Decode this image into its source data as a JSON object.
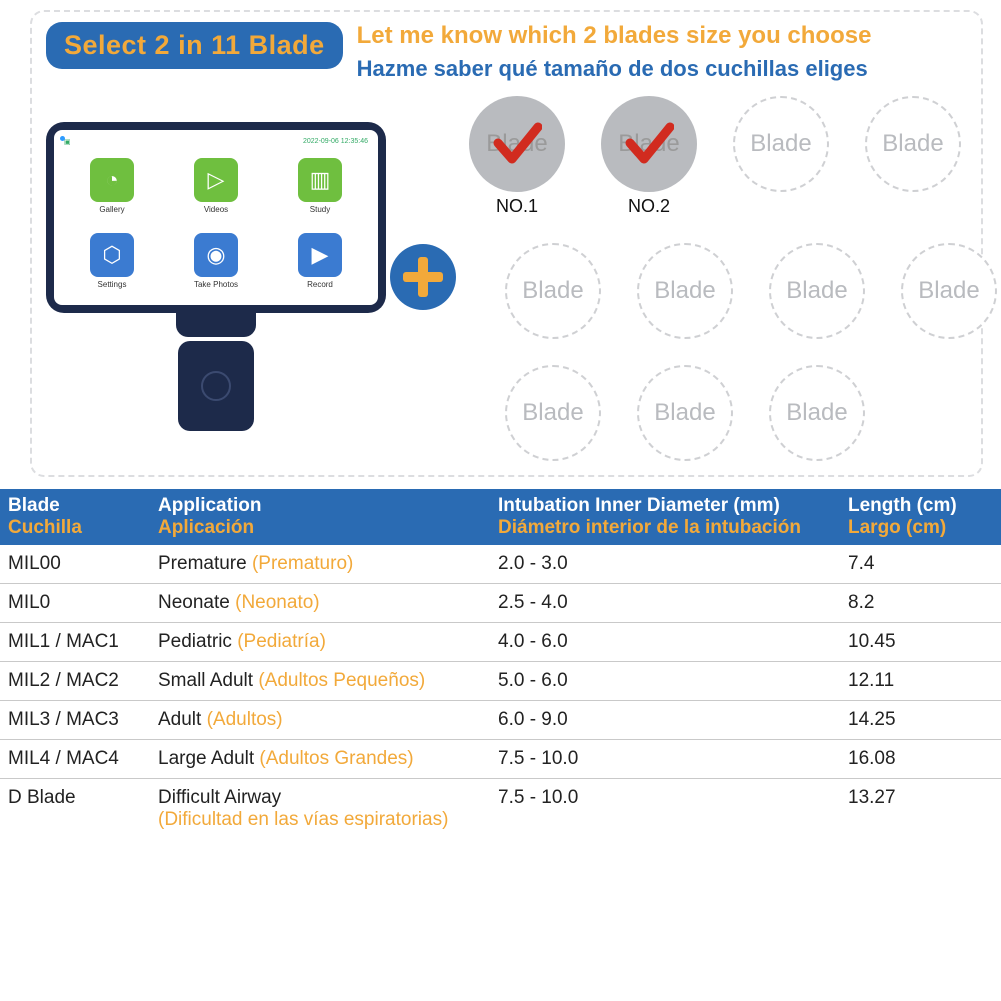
{
  "header": {
    "badge": "Select 2 in 11 Blade",
    "title_en": "Let me know which 2 blades size you choose",
    "title_es": "Hazme saber qué tamaño de dos cuchillas eliges"
  },
  "device": {
    "status_batt": "▣",
    "status_time": "2022-09-06  12:35:46",
    "apps": [
      {
        "label": "Gallery",
        "bg": "#6fbf3f",
        "glyph": "◔"
      },
      {
        "label": "Videos",
        "bg": "#6fbf3f",
        "glyph": "▷"
      },
      {
        "label": "Study",
        "bg": "#6fbf3f",
        "glyph": "▥"
      },
      {
        "label": "Settings",
        "bg": "#3b7bd1",
        "glyph": "⬡"
      },
      {
        "label": "Take Photos",
        "bg": "#3b7bd1",
        "glyph": "◉"
      },
      {
        "label": "Record",
        "bg": "#3b7bd1",
        "glyph": "▶"
      }
    ]
  },
  "circles": {
    "word": "Blade",
    "row1": [
      {
        "selected": true,
        "label": "NO.1"
      },
      {
        "selected": true,
        "label": "NO.2"
      },
      {
        "selected": false
      },
      {
        "selected": false
      }
    ],
    "row2_count": 4,
    "row3_count": 3
  },
  "colors": {
    "primary_blue": "#2a6bb3",
    "accent_orange": "#f2a93a",
    "device_navy": "#1d2a4a",
    "check_red": "#d12b1f",
    "circle_grey": "#b9bbbf"
  },
  "table": {
    "headers": {
      "blade_en": "Blade",
      "blade_es": "Cuchilla",
      "app_en": "Application",
      "app_es": "Aplicación",
      "diam_en": "Intubation Inner Diameter   (mm)",
      "diam_es": "Diámetro interior de la intubación",
      "len_en": "Length (cm)",
      "len_es": "Largo (cm)"
    },
    "rows": [
      {
        "blade": "MIL00",
        "app_en": "Premature",
        "app_es": "(Prematuro)",
        "app_block": false,
        "diam": "2.0 - 3.0",
        "len": "7.4"
      },
      {
        "blade": "MIL0",
        "app_en": "Neonate",
        "app_es": "(Neonato)",
        "app_block": false,
        "diam": "2.5 - 4.0",
        "len": "8.2"
      },
      {
        "blade": "MIL1 / MAC1",
        "app_en": "Pediatric",
        "app_es": "(Pediatría)",
        "app_block": false,
        "diam": "4.0 - 6.0",
        "len": "10.45"
      },
      {
        "blade": "MIL2 / MAC2",
        "app_en": "Small Adult",
        "app_es": "(Adultos Pequeños)",
        "app_block": false,
        "diam": "5.0 - 6.0",
        "len": "12.11"
      },
      {
        "blade": "MIL3 / MAC3",
        "app_en": "Adult",
        "app_es": "(Adultos)",
        "app_block": false,
        "diam": "6.0 - 9.0",
        "len": "14.25"
      },
      {
        "blade": "MIL4 / MAC4",
        "app_en": "Large Adult",
        "app_es": "(Adultos Grandes)",
        "app_block": false,
        "diam": "7.5 - 10.0",
        "len": "16.08"
      },
      {
        "blade": "D Blade",
        "app_en": "Difficult Airway",
        "app_es": "(Dificultad en las vías espiratorias)",
        "app_block": true,
        "diam": "7.5 - 10.0",
        "len": "13.27"
      }
    ]
  }
}
